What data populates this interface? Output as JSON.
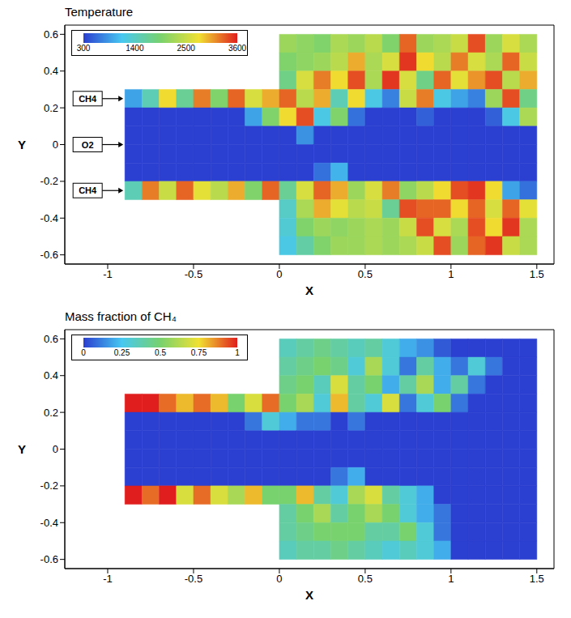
{
  "chart_data": [
    {
      "type": "heatmap",
      "title": "Temperature",
      "x_label": "X",
      "y_label": "Y",
      "xlim": [
        -1.25,
        1.6
      ],
      "ylim": [
        -0.65,
        0.65
      ],
      "xticks": [
        -1,
        -0.5,
        0,
        0.5,
        1,
        1.5
      ],
      "yticks": [
        -0.6,
        -0.4,
        -0.2,
        0,
        0.2,
        0.4,
        0.6
      ],
      "colorbar": {
        "range": [
          300,
          3600
        ],
        "ticks": [
          300,
          1400,
          2500,
          3600
        ]
      },
      "annotations": [
        {
          "text": "CH4",
          "x": -0.9,
          "y": 0.25
        },
        {
          "text": "O2",
          "x": -0.9,
          "y": 0
        },
        {
          "text": "CH4",
          "x": -0.9,
          "y": -0.25
        }
      ],
      "cells": {
        "x": [
          -0.85,
          -0.75,
          -0.65,
          -0.55,
          -0.45,
          -0.35,
          -0.25,
          -0.15,
          -0.05,
          0.05,
          0.15,
          0.25,
          0.35,
          0.45,
          0.55,
          0.65,
          0.75,
          0.85,
          0.95,
          1.05,
          1.15,
          1.25,
          1.35,
          1.45
        ],
        "y": [
          0.55,
          0.45,
          0.35,
          0.25,
          0.15,
          0.05,
          -0.05,
          -0.15,
          -0.25,
          -0.35,
          -0.45,
          -0.55
        ],
        "values": [
          [
            null,
            null,
            null,
            null,
            null,
            null,
            null,
            null,
            null,
            2200,
            2100,
            2000,
            2300,
            2200,
            2400,
            2000,
            3300,
            2200,
            2300,
            2500,
            3400,
            2200,
            2600,
            2300
          ],
          [
            null,
            null,
            null,
            null,
            null,
            null,
            null,
            null,
            null,
            2000,
            2100,
            2200,
            2400,
            3000,
            2300,
            2600,
            3500,
            2800,
            2400,
            3200,
            2600,
            2300,
            3300,
            2500
          ],
          [
            null,
            null,
            null,
            null,
            null,
            null,
            null,
            null,
            null,
            1800,
            2600,
            3200,
            2800,
            3400,
            2300,
            3500,
            2600,
            1800,
            3300,
            2700,
            3100,
            3400,
            2400,
            3000
          ],
          [
            900,
            1500,
            2800,
            1700,
            3200,
            2000,
            3300,
            2600,
            3000,
            3300,
            2400,
            3000,
            1500,
            2800,
            1200,
            700,
            2500,
            3200,
            1200,
            900,
            700,
            2200,
            3400,
            1800
          ],
          [
            300,
            300,
            300,
            300,
            300,
            300,
            300,
            900,
            2000,
            2800,
            3400,
            1200,
            2000,
            600,
            300,
            300,
            300,
            500,
            300,
            300,
            300,
            500,
            1200,
            2300
          ],
          [
            300,
            300,
            300,
            300,
            300,
            300,
            300,
            300,
            300,
            300,
            800,
            300,
            300,
            300,
            300,
            300,
            300,
            300,
            300,
            300,
            300,
            300,
            300,
            300
          ],
          [
            300,
            300,
            300,
            300,
            300,
            300,
            300,
            300,
            300,
            300,
            300,
            300,
            300,
            300,
            300,
            300,
            300,
            300,
            300,
            300,
            300,
            300,
            300,
            300
          ],
          [
            300,
            300,
            300,
            300,
            300,
            300,
            300,
            300,
            300,
            300,
            300,
            600,
            1000,
            300,
            300,
            300,
            300,
            300,
            300,
            300,
            300,
            300,
            300,
            300
          ],
          [
            1500,
            3200,
            2500,
            3300,
            2700,
            2400,
            3000,
            2000,
            3300,
            1700,
            2600,
            3300,
            3000,
            2200,
            2600,
            3200,
            2100,
            2400,
            2800,
            3400,
            3500,
            2800,
            900,
            600
          ],
          [
            null,
            null,
            null,
            null,
            null,
            null,
            null,
            null,
            null,
            1400,
            2300,
            3000,
            2700,
            2400,
            2500,
            1700,
            3400,
            3300,
            3300,
            2800,
            3300,
            2600,
            3300,
            2700
          ],
          [
            null,
            null,
            null,
            null,
            null,
            null,
            null,
            null,
            null,
            1300,
            2000,
            2200,
            2100,
            2200,
            2300,
            2200,
            2500,
            3400,
            2600,
            2300,
            3400,
            2800,
            3500,
            2300
          ],
          [
            null,
            null,
            null,
            null,
            null,
            null,
            null,
            null,
            null,
            1200,
            1600,
            2000,
            2200,
            2200,
            2300,
            2200,
            2300,
            2500,
            3400,
            2200,
            3300,
            3500,
            2500,
            2300
          ]
        ]
      }
    },
    {
      "type": "heatmap",
      "title": "Mass fraction of CH₄",
      "x_label": "X",
      "y_label": "Y",
      "xlim": [
        -1.25,
        1.6
      ],
      "ylim": [
        -0.65,
        0.65
      ],
      "xticks": [
        -1,
        -0.5,
        0,
        0.5,
        1,
        1.5
      ],
      "yticks": [
        -0.6,
        -0.4,
        -0.2,
        0,
        0.2,
        0.4,
        0.6
      ],
      "colorbar": {
        "range": [
          0,
          1
        ],
        "ticks": [
          0,
          0.25,
          0.5,
          0.75,
          1
        ]
      },
      "cells": {
        "x": [
          -0.85,
          -0.75,
          -0.65,
          -0.55,
          -0.45,
          -0.35,
          -0.25,
          -0.15,
          -0.05,
          0.05,
          0.15,
          0.25,
          0.35,
          0.45,
          0.55,
          0.65,
          0.75,
          0.85,
          0.95,
          1.05,
          1.15,
          1.25,
          1.35,
          1.45
        ],
        "y": [
          0.55,
          0.45,
          0.35,
          0.25,
          0.15,
          0.05,
          -0.05,
          -0.15,
          -0.25,
          -0.35,
          -0.45,
          -0.55
        ],
        "values": [
          [
            null,
            null,
            null,
            null,
            null,
            null,
            null,
            null,
            null,
            0.35,
            0.4,
            0.45,
            0.4,
            0.35,
            0.4,
            0.3,
            0.2,
            0.15,
            0.05,
            0,
            0,
            0,
            0,
            0
          ],
          [
            null,
            null,
            null,
            null,
            null,
            null,
            null,
            null,
            null,
            0.4,
            0.45,
            0.5,
            0.45,
            0.3,
            0.6,
            0.3,
            0.1,
            0.4,
            0.2,
            0.1,
            0.3,
            0.1,
            0,
            0
          ],
          [
            null,
            null,
            null,
            null,
            null,
            null,
            null,
            null,
            null,
            0.45,
            0.5,
            0.35,
            0.7,
            0.4,
            0.5,
            0.2,
            0.4,
            0.6,
            0.2,
            0.4,
            0.1,
            0,
            0,
            0
          ],
          [
            1,
            1,
            0.9,
            0.8,
            0.9,
            0.8,
            0.5,
            0.7,
            0.9,
            0.5,
            0.6,
            0.3,
            0.8,
            0.4,
            0.3,
            0.7,
            0.1,
            0.3,
            0.5,
            0.1,
            0,
            0,
            0,
            0
          ],
          [
            0,
            0,
            0,
            0,
            0,
            0,
            0,
            0.1,
            0.3,
            0.2,
            0.1,
            0.1,
            0,
            0.1,
            0,
            0,
            0,
            0,
            0,
            0,
            0,
            0,
            0,
            0
          ],
          [
            0,
            0,
            0,
            0,
            0,
            0,
            0,
            0,
            0,
            0,
            0,
            0,
            0,
            0,
            0,
            0,
            0,
            0,
            0,
            0,
            0,
            0,
            0,
            0
          ],
          [
            0,
            0,
            0,
            0,
            0,
            0,
            0,
            0,
            0,
            0,
            0,
            0,
            0,
            0,
            0,
            0,
            0,
            0,
            0,
            0,
            0,
            0,
            0,
            0
          ],
          [
            0,
            0,
            0,
            0,
            0,
            0,
            0,
            0,
            0,
            0,
            0,
            0,
            0.1,
            0.2,
            0,
            0,
            0,
            0,
            0,
            0,
            0,
            0,
            0,
            0
          ],
          [
            1,
            0.9,
            1,
            0.7,
            0.9,
            0.7,
            0.6,
            0.8,
            0.5,
            0.5,
            0.8,
            0.4,
            0.3,
            0.6,
            0.7,
            0.4,
            0.3,
            0.2,
            0,
            0,
            0,
            0,
            0,
            0
          ],
          [
            null,
            null,
            null,
            null,
            null,
            null,
            null,
            null,
            null,
            0.4,
            0.5,
            0.6,
            0.4,
            0.5,
            0.6,
            0.5,
            0.3,
            0.2,
            0.1,
            0,
            0,
            0,
            0,
            0
          ],
          [
            null,
            null,
            null,
            null,
            null,
            null,
            null,
            null,
            null,
            0.4,
            0.45,
            0.5,
            0.5,
            0.5,
            0.4,
            0.4,
            0.5,
            0.3,
            0.1,
            0,
            0,
            0,
            0,
            0
          ],
          [
            null,
            null,
            null,
            null,
            null,
            null,
            null,
            null,
            null,
            0.35,
            0.4,
            0.4,
            0.45,
            0.4,
            0.35,
            0.3,
            0.35,
            0.3,
            0.2,
            0,
            0,
            0,
            0,
            0
          ]
        ]
      }
    }
  ]
}
